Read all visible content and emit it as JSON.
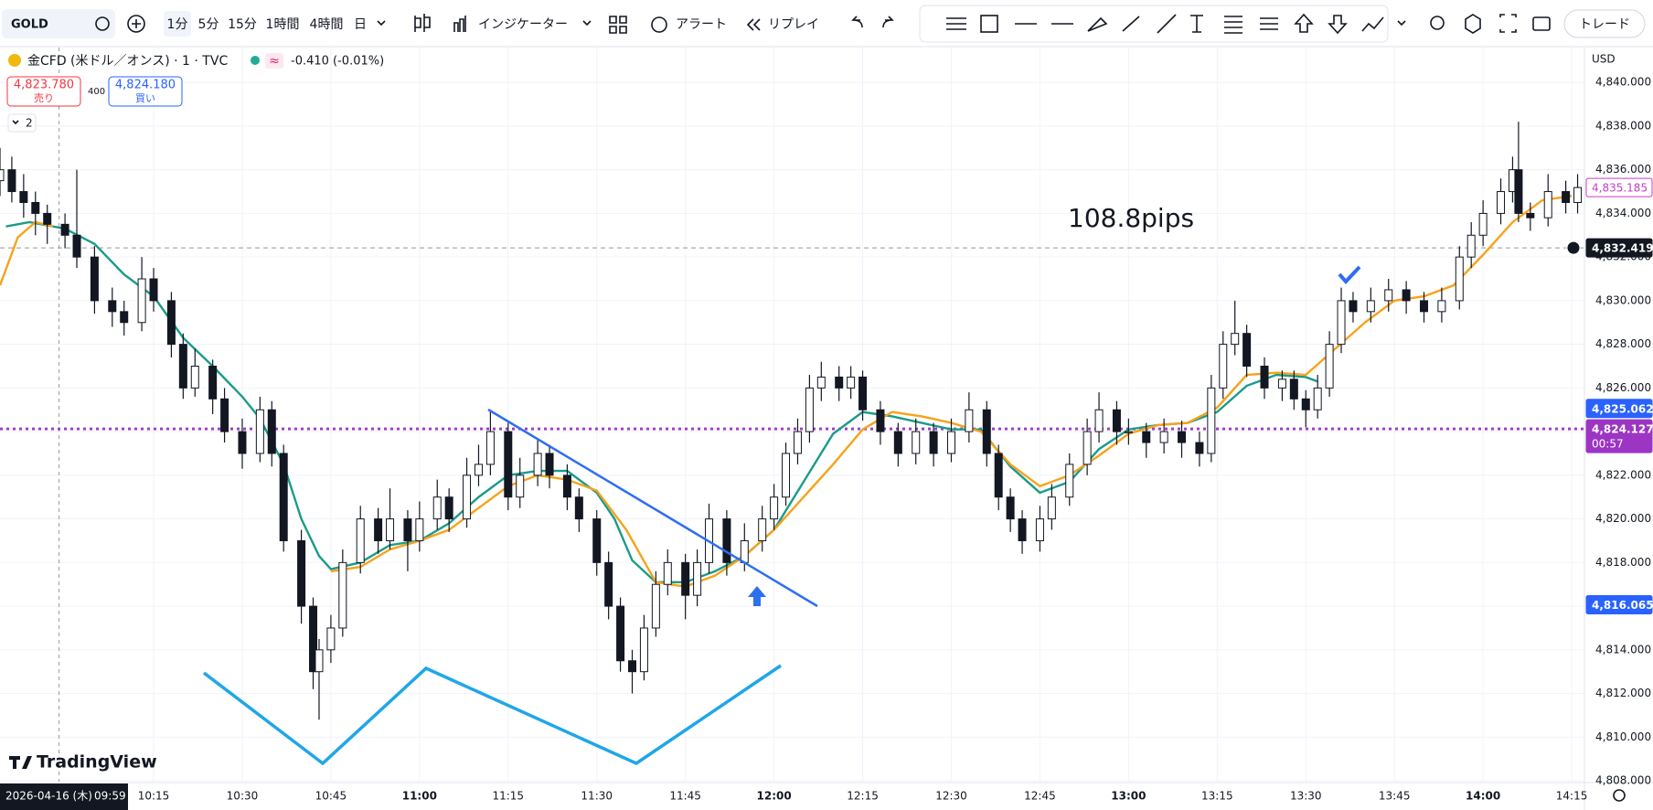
{
  "ui": {
    "symbol": "GOLD",
    "timeframes": [
      "1分",
      "5分",
      "15分",
      "1時間",
      "4時間",
      "日"
    ],
    "indicators": "インジケーター",
    "alert": "アラート",
    "replay": "リプレイ",
    "trade": "トレード",
    "instrument": "金CFD (米ドル／オンス) · 1 · TVC",
    "approx": "≈",
    "change": "-0.410 (-0.01%)",
    "sell_price": "4,823.780",
    "sell": "売り",
    "spread": "400",
    "buy_price": "4,824.180",
    "buy": "買い",
    "indicator_count": "2",
    "currency": "USD",
    "logo": "TradingView"
  },
  "chart_data": {
    "type": "candlestick",
    "annotation": "108.8pips",
    "crosshair": {
      "date": "2026-04-16 (木)",
      "time": "09:59"
    },
    "xlim": [
      "09:49",
      "14:17"
    ],
    "ylim": [
      4807.96,
      4841.6
    ],
    "grid": true,
    "up_color": "#ffffff",
    "down_color": "#131722",
    "wick_color": "#131722",
    "x": [
      "09:49",
      "09:51",
      "09:53",
      "09:55",
      "09:57",
      "10:00",
      "10:02",
      "10:05",
      "10:08",
      "10:10",
      "10:13",
      "10:15",
      "10:18",
      "10:20",
      "10:22",
      "10:25",
      "10:27",
      "10:30",
      "10:33",
      "10:35",
      "10:37",
      "10:40",
      "10:42",
      "10:43",
      "10:45",
      "10:47",
      "10:50",
      "10:53",
      "10:55",
      "10:58",
      "11:00",
      "11:03",
      "11:05",
      "11:08",
      "11:10",
      "11:12",
      "11:15",
      "11:17",
      "11:20",
      "11:22",
      "11:25",
      "11:27",
      "11:30",
      "11:32",
      "11:34",
      "11:36",
      "11:38",
      "11:40",
      "11:42",
      "11:45",
      "11:47",
      "11:49",
      "11:52",
      "11:55",
      "11:58",
      "12:00",
      "12:02",
      "12:04",
      "12:06",
      "12:08",
      "12:11",
      "12:13",
      "12:15",
      "12:18",
      "12:21",
      "12:24",
      "12:27",
      "12:30",
      "12:33",
      "12:36",
      "12:38",
      "12:40",
      "12:42",
      "12:45",
      "12:47",
      "12:50",
      "12:53",
      "12:55",
      "12:58",
      "13:00",
      "13:03",
      "13:06",
      "13:09",
      "13:12",
      "13:14",
      "13:16",
      "13:18",
      "13:20",
      "13:23",
      "13:26",
      "13:28",
      "13:30",
      "13:32",
      "13:34",
      "13:36",
      "13:38",
      "13:41",
      "13:44",
      "13:47",
      "13:50",
      "13:53",
      "13:56",
      "13:58",
      "14:00",
      "14:03",
      "14:05",
      "14:06",
      "14:08",
      "14:11",
      "14:14",
      "14:16"
    ],
    "open": [
      4835.5,
      4836,
      4835,
      4834.5,
      4834,
      4833.5,
      4833,
      4832,
      4830,
      4829.5,
      4829,
      4831,
      4830,
      4828,
      4826,
      4827,
      4825.5,
      4824,
      4823,
      4825,
      4823,
      4819,
      4816,
      4813,
      4814,
      4815,
      4818,
      4820,
      4819,
      4820,
      4819,
      4820,
      4821,
      4820,
      4822,
      4822.5,
      4824,
      4821,
      4822,
      4823,
      4822,
      4821,
      4820,
      4818,
      4816,
      4813.5,
      4813,
      4815,
      4817,
      4818,
      4816.5,
      4818,
      4820,
      4818,
      4819,
      4820,
      4821,
      4823,
      4824,
      4826,
      4826.5,
      4826,
      4826.5,
      4825,
      4824,
      4823,
      4824,
      4823,
      4824,
      4825,
      4823,
      4821,
      4820,
      4819,
      4820,
      4821,
      4822.5,
      4824,
      4825,
      4824,
      4824,
      4823.5,
      4824,
      4823.5,
      4823,
      4826,
      4828,
      4828.5,
      4827,
      4826,
      4826.4,
      4825.5,
      4825,
      4826,
      4828,
      4830,
      4829.5,
      4830,
      4830.5,
      4830,
      4829.5,
      4830,
      4832,
      4833,
      4834,
      4835,
      4836,
      4834,
      4833.8,
      4835,
      4834.5
    ],
    "high": [
      4837,
      4836.6,
      4835.8,
      4835,
      4834.4,
      4834,
      4836,
      4832.5,
      4830.6,
      4830,
      4832,
      4831.5,
      4830.4,
      4828.5,
      4827.8,
      4827.3,
      4826,
      4824.6,
      4825.6,
      4825.4,
      4823.4,
      4819.5,
      4816.4,
      4814.5,
      4815.6,
      4818.6,
      4820.6,
      4820.5,
      4821.4,
      4820.4,
      4820.8,
      4821.8,
      4821.4,
      4822.8,
      4823.4,
      4824.9,
      4824.4,
      4822.8,
      4823.6,
      4823.4,
      4822.5,
      4821.4,
      4820.4,
      4818.5,
      4816.4,
      4814,
      4815.6,
      4817.6,
      4818.6,
      4818.4,
      4818.6,
      4820.7,
      4820.4,
      4819.8,
      4820.6,
      4821.6,
      4823.5,
      4824.6,
      4826.6,
      4827.2,
      4827,
      4827,
      4826.8,
      4825.4,
      4824.4,
      4824.6,
      4824.4,
      4824.6,
      4825.8,
      4825.4,
      4823.4,
      4821.4,
      4820.4,
      4820.6,
      4821.6,
      4823,
      4824.6,
      4825.8,
      4825.4,
      4824.6,
      4824.4,
      4824.6,
      4824.5,
      4824,
      4826.6,
      4828.6,
      4830,
      4828.9,
      4827.4,
      4826.8,
      4826.8,
      4825.9,
      4826.6,
      4828.6,
      4830.6,
      4830.4,
      4830.6,
      4831,
      4830.9,
      4830.4,
      4830.6,
      4832.5,
      4833.6,
      4834.6,
      4835.6,
      4836.6,
      4838.2,
      4834.5,
      4835.8,
      4835.5,
      4835.8
    ],
    "low": [
      4834.8,
      4834.5,
      4833.8,
      4833,
      4832.6,
      4832.4,
      4831.5,
      4829.4,
      4828.8,
      4828.4,
      4828.6,
      4829.5,
      4827.4,
      4825.5,
      4825.6,
      4824.8,
      4823.5,
      4822.3,
      4822.6,
      4822.4,
      4818.5,
      4815.2,
      4812.2,
      4810.8,
      4813.4,
      4814.6,
      4817.5,
      4818.4,
      4818.6,
      4817.6,
      4818.5,
      4819.5,
      4819.4,
      4819.6,
      4821.5,
      4822,
      4820.4,
      4820.5,
      4821.5,
      4821.4,
      4820.4,
      4819.4,
      4817.4,
      4815.4,
      4813,
      4812,
      4812.6,
      4814.6,
      4816.5,
      4815.4,
      4816,
      4817.5,
      4817.4,
      4817.6,
      4818.5,
      4819.5,
      4820.6,
      4822.5,
      4823.5,
      4825.4,
      4825.4,
      4825.5,
      4824.5,
      4823.4,
      4822.4,
      4822.5,
      4822.4,
      4822.6,
      4823.5,
      4822.4,
      4820.4,
      4819.4,
      4818.4,
      4818.5,
      4819.5,
      4820.6,
      4822,
      4823.5,
      4823.4,
      4823.4,
      4822.8,
      4823,
      4822.8,
      4822.4,
      4822.6,
      4825.5,
      4827.5,
      4826.5,
      4825.5,
      4825.4,
      4825,
      4824.2,
      4824.6,
      4825.6,
      4827.6,
      4829,
      4829,
      4829.5,
      4829.4,
      4829,
      4829,
      4829.6,
      4831.5,
      4832.5,
      4833.5,
      4834.5,
      4833.6,
      4833.2,
      4833.4,
      4834,
      4834
    ],
    "close": [
      4836,
      4835,
      4834.5,
      4834,
      4833.5,
      4833,
      4832,
      4830,
      4829.5,
      4829,
      4831,
      4830,
      4828,
      4826,
      4827,
      4825.5,
      4824,
      4823,
      4825,
      4823,
      4819,
      4816,
      4813,
      4814,
      4815,
      4818,
      4820,
      4819,
      4820,
      4819,
      4820,
      4821,
      4820,
      4822,
      4822.5,
      4824,
      4821,
      4822,
      4823,
      4822,
      4821,
      4820,
      4818,
      4816,
      4813.5,
      4813,
      4815,
      4817,
      4818,
      4816.5,
      4818,
      4820,
      4818,
      4819,
      4820,
      4821,
      4823,
      4824,
      4826,
      4826.5,
      4826,
      4826.5,
      4825,
      4824,
      4823,
      4824,
      4823,
      4824,
      4825,
      4823,
      4821,
      4820,
      4819,
      4820,
      4821,
      4822.5,
      4824,
      4825,
      4824,
      4824,
      4823.5,
      4824,
      4823.5,
      4823,
      4826,
      4828,
      4828.5,
      4827,
      4826,
      4826.4,
      4825.5,
      4825,
      4826,
      4828,
      4830,
      4829.5,
      4830,
      4830.5,
      4830,
      4829.5,
      4830,
      4832,
      4833,
      4834,
      4835,
      4836,
      4834,
      4833.8,
      4835,
      4834.5,
      4835.185
    ],
    "lines": [
      {
        "color": "#1a9b8a",
        "x": [
          "09:50",
          "09:54",
          "10:00",
          "10:05",
          "10:10",
          "10:15",
          "10:20",
          "10:25",
          "10:30",
          "10:33",
          "10:37",
          "10:40",
          "10:43",
          "10:45",
          "10:50",
          "10:55",
          "11:00",
          "11:05",
          "11:10",
          "11:15",
          "11:20",
          "11:25",
          "11:30",
          "11:33",
          "11:36",
          "11:40",
          "11:45",
          "11:50",
          "11:55",
          "12:00",
          "12:05",
          "12:10",
          "12:15",
          "12:20",
          "12:25",
          "12:30",
          "12:35",
          "12:40",
          "12:45",
          "12:50",
          "12:55",
          "13:00",
          "13:05",
          "13:10",
          "13:15",
          "13:20",
          "13:25",
          "13:30",
          "13:32"
        ],
        "values": [
          4833.4,
          4833.6,
          4833.3,
          4832.6,
          4831.2,
          4830.2,
          4828.3,
          4827,
          4825.6,
          4824.6,
          4822.5,
          4820,
          4818.3,
          4817.7,
          4818,
          4818.8,
          4819,
          4819.8,
          4821,
          4822,
          4822.2,
          4822.2,
          4821.2,
          4820,
          4818.1,
          4817.1,
          4817.1,
          4817.6,
          4818.3,
          4819.5,
          4821.7,
          4823.9,
          4824.9,
          4824.7,
          4824.4,
          4824.1,
          4824.1,
          4822.4,
          4821.2,
          4821.7,
          4823.2,
          4824.1,
          4824.3,
          4824.4,
          4824.9,
          4826.1,
          4826.6,
          4826.5,
          4826.3
        ]
      },
      {
        "color": "#f7a21b",
        "x": [
          "09:49",
          "09:52",
          "09:55",
          "09:58",
          "10:20",
          "10:45",
          "10:50",
          "10:55",
          "11:00",
          "11:05",
          "11:10",
          "11:15",
          "11:20",
          "11:25",
          "11:30",
          "11:35",
          "11:40",
          "11:45",
          "11:50",
          "11:55",
          "12:00",
          "12:05",
          "12:10",
          "12:15",
          "12:20",
          "12:25",
          "12:30",
          "12:35",
          "12:40",
          "12:45",
          "12:50",
          "12:55",
          "13:00",
          "13:05",
          "13:10",
          "13:15",
          "13:20",
          "13:25",
          "13:30",
          "13:35",
          "13:40",
          "13:45",
          "13:50",
          "13:55",
          "14:00",
          "14:05",
          "14:10",
          "14:15"
        ],
        "values": [
          4830.7,
          4832.9,
          4833.6,
          4833.4,
          null,
          4817.6,
          4817.8,
          4818.6,
          4819,
          4819.5,
          4820.5,
          4821.5,
          4822,
          4821.8,
          4821.3,
          4819.5,
          4817.1,
          4816.9,
          4817.4,
          4818.3,
          4819.5,
          4821,
          4822.5,
          4824.1,
          4824.9,
          4824.7,
          4824.4,
          4824,
          4822.5,
          4821.5,
          4822,
          4822.9,
          4823.9,
          4824.3,
          4824.4,
          4825.1,
          4826.6,
          4826.7,
          4826.6,
          4827.8,
          4829,
          4830,
          4830.2,
          4830.7,
          4832.1,
          4833.6,
          4834.6,
          4834.8
        ]
      }
    ],
    "price_lines": [
      {
        "value": 4832.419,
        "color": "#9598a1",
        "dash": "5 4"
      },
      {
        "value": 4824.127,
        "color": "#a23ccf",
        "dash": "3 4"
      }
    ],
    "price_badges": [
      {
        "value": 4835.185,
        "label": "4,835.185",
        "color": "#c53ec9",
        "outline": true
      },
      {
        "value": 4832.419,
        "label": "4,832.419",
        "color": "#131722"
      },
      {
        "value": 4825.062,
        "label": "4,825.062",
        "color": "#2962ff"
      },
      {
        "value": 4824.127,
        "label": "4,824.127",
        "sub": "00:57",
        "color": "#9c35c4"
      },
      {
        "value": 4816.065,
        "label": "4,816.065",
        "color": "#2962ff"
      }
    ],
    "xticks": [
      "10:15",
      "10:30",
      "10:45",
      "11:00",
      "11:15",
      "11:30",
      "11:45",
      "12:00",
      "12:15",
      "12:30",
      "12:45",
      "13:00",
      "13:15",
      "13:30",
      "13:45",
      "14:00",
      "14:15"
    ],
    "yticks": [
      {
        "value": 4808,
        "label": "4,808.000"
      },
      {
        "value": 4810,
        "label": "4,810.000"
      },
      {
        "value": 4812,
        "label": "4,812.000"
      },
      {
        "value": 4814,
        "label": "4,814.000"
      },
      {
        "value": 4816,
        "label": "4,816.000"
      },
      {
        "value": 4818,
        "label": "4,818.000"
      },
      {
        "value": 4820,
        "label": "4,820.000"
      },
      {
        "value": 4822,
        "label": "4,822.000"
      },
      {
        "value": 4824,
        "label": "4,824.000"
      },
      {
        "value": 4826,
        "label": "4,826.000"
      },
      {
        "value": 4828,
        "label": "4,828.000"
      },
      {
        "value": 4830,
        "label": "4,830.000"
      },
      {
        "value": 4832,
        "label": "4,832.000"
      },
      {
        "value": 4834,
        "label": "4,834.000"
      },
      {
        "value": 4836,
        "label": "4,836.000"
      },
      {
        "value": 4838,
        "label": "4,838.000"
      },
      {
        "value": 4840,
        "label": "4,840.000"
      }
    ]
  }
}
